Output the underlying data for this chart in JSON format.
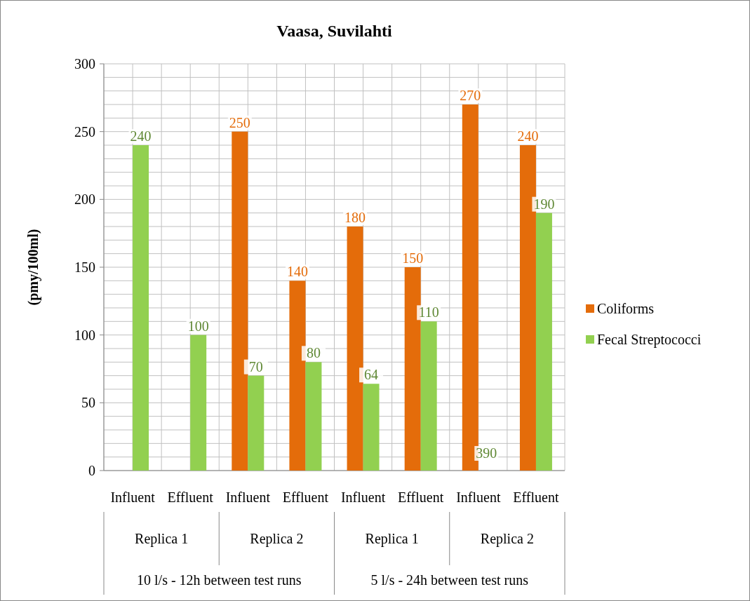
{
  "chart_data": {
    "type": "bar",
    "title": "Vaasa, Suvilahti",
    "ylabel": "(pmy/100ml)",
    "categories": [
      "Influent",
      "Effluent",
      "Influent",
      "Effluent",
      "Influent",
      "Effluent",
      "Influent",
      "Effluent"
    ],
    "series": [
      {
        "name": "Coliforms",
        "color": "#e46c0a",
        "values": [
          null,
          null,
          250,
          140,
          180,
          150,
          270,
          240
        ],
        "value_labels": [
          null,
          null,
          "250",
          "140",
          "180",
          "150",
          "270",
          "240"
        ]
      },
      {
        "name": "Fecal Streptococci",
        "color": "#92d050",
        "values": [
          240,
          100,
          70,
          80,
          64,
          110,
          null,
          190
        ],
        "value_labels": [
          "240",
          "100",
          "70",
          "80",
          "64",
          "110",
          "390",
          "190"
        ]
      }
    ],
    "ylim": [
      0,
      300
    ],
    "yticks": [
      0,
      50,
      100,
      150,
      200,
      250,
      300
    ],
    "grid": true,
    "legend": "right",
    "annotations": [
      "Replica 1",
      "Replica 2",
      "Replica 1",
      "Replica 2",
      "10 l/s - 12h between test runs",
      "5 l/s - 24h between test runs"
    ]
  }
}
